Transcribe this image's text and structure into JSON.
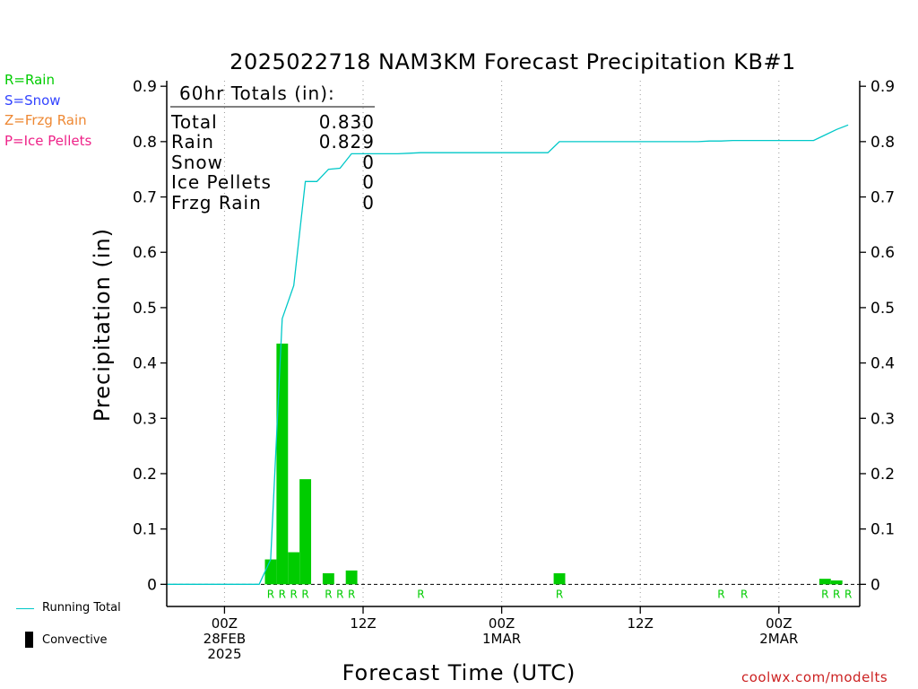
{
  "legend_types": [
    {
      "label": "R=Rain",
      "color": "#00cc00"
    },
    {
      "label": "S=Snow",
      "color": "#3344ff"
    },
    {
      "label": "Z=Frzg Rain",
      "color": "#ee8833"
    },
    {
      "label": "P=Ice Pellets",
      "color": "#ee2288"
    }
  ],
  "legend_bottom": {
    "running_total": "Running Total",
    "convective": "Convective"
  },
  "credit": "coolwx.com/modelts",
  "totals": {
    "header": "60hr Totals (in):",
    "rows": [
      {
        "label": "Total",
        "value": "0.830"
      },
      {
        "label": "Rain",
        "value": "0.829"
      },
      {
        "label": "Snow",
        "value": "0"
      },
      {
        "label": "Ice Pellets",
        "value": "0"
      },
      {
        "label": "Frzg Rain",
        "value": "0"
      }
    ]
  },
  "colors": {
    "bar": "#00cc00",
    "running_total": "#00c8c8",
    "ptype_letter": "#00cc00"
  },
  "chart_data": {
    "type": "bar",
    "title": "2025022718 NAM3KM Forecast Precipitation KB#1",
    "xlabel": "Forecast Time (UTC)",
    "ylabel": "Precipitation (in)",
    "ylim": [
      -0.04,
      0.91
    ],
    "xlim_hours": [
      -5,
      55
    ],
    "yticks": [
      0,
      0.1,
      0.2,
      0.3,
      0.4,
      0.5,
      0.6,
      0.7,
      0.8,
      0.9
    ],
    "ytick_labels": [
      "0",
      "0.1",
      "0.2",
      "0.3",
      "0.4",
      "0.5",
      "0.6",
      "0.7",
      "0.8",
      "0.9"
    ],
    "xticks": [
      {
        "hour": 0,
        "lines": [
          "00Z",
          "28FEB",
          "2025"
        ]
      },
      {
        "hour": 12,
        "lines": [
          "12Z"
        ]
      },
      {
        "hour": 24,
        "lines": [
          "00Z",
          "1MAR"
        ]
      },
      {
        "hour": 36,
        "lines": [
          "12Z"
        ]
      },
      {
        "hour": 48,
        "lines": [
          "00Z",
          "2MAR"
        ]
      }
    ],
    "grid_vertical": true,
    "series": [
      {
        "kind": "hourly_precip",
        "hours": [
          4,
          5,
          6,
          7,
          9,
          11,
          29,
          52,
          53
        ],
        "values": [
          0.045,
          0.435,
          0.058,
          0.19,
          0.02,
          0.025,
          0.02,
          0.01,
          0.007
        ]
      },
      {
        "kind": "running_total",
        "name": "Running Total",
        "hours": [
          -5,
          3,
          4,
          5,
          6,
          7,
          8,
          9,
          10,
          11,
          12,
          13,
          14,
          15,
          16,
          17,
          18,
          19,
          20,
          21,
          22,
          23,
          24,
          25,
          26,
          27,
          28,
          29,
          30,
          31,
          32,
          33,
          34,
          35,
          36,
          37,
          38,
          39,
          40,
          41,
          42,
          43,
          44,
          45,
          46,
          47,
          48,
          49,
          50,
          51,
          52,
          53,
          54
        ],
        "values": [
          0,
          0,
          0.045,
          0.48,
          0.54,
          0.728,
          0.728,
          0.75,
          0.752,
          0.778,
          0.778,
          0.778,
          0.778,
          0.778,
          0.779,
          0.78,
          0.78,
          0.78,
          0.78,
          0.78,
          0.78,
          0.78,
          0.78,
          0.78,
          0.78,
          0.78,
          0.78,
          0.8,
          0.8,
          0.8,
          0.8,
          0.8,
          0.8,
          0.8,
          0.8,
          0.8,
          0.8,
          0.8,
          0.8,
          0.8,
          0.801,
          0.801,
          0.802,
          0.802,
          0.802,
          0.802,
          0.802,
          0.802,
          0.802,
          0.802,
          0.812,
          0.822,
          0.83
        ]
      }
    ],
    "ptype_markers": [
      {
        "hour": 4,
        "letter": "R"
      },
      {
        "hour": 5,
        "letter": "R"
      },
      {
        "hour": 6,
        "letter": "R"
      },
      {
        "hour": 7,
        "letter": "R"
      },
      {
        "hour": 9,
        "letter": "R"
      },
      {
        "hour": 10,
        "letter": "R"
      },
      {
        "hour": 11,
        "letter": "R"
      },
      {
        "hour": 17,
        "letter": "R"
      },
      {
        "hour": 29,
        "letter": "R"
      },
      {
        "hour": 43,
        "letter": "R"
      },
      {
        "hour": 45,
        "letter": "R"
      },
      {
        "hour": 52,
        "letter": "R"
      },
      {
        "hour": 53,
        "letter": "R"
      },
      {
        "hour": 54,
        "letter": "R"
      }
    ]
  }
}
